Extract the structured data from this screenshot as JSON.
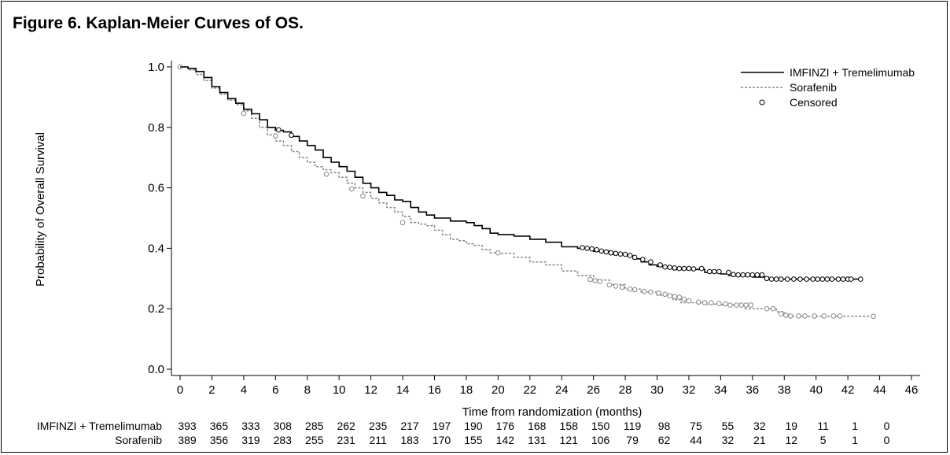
{
  "figure": {
    "title": "Figure 6. Kaplan-Meier Curves of OS."
  },
  "chart_data": {
    "type": "line",
    "subtype": "kaplan-meier",
    "title": "Figure 6. Kaplan-Meier Curves of OS.",
    "xlabel": "Time from randomization (months)",
    "ylabel": "Probability of Overall Survival",
    "xlim": [
      0,
      46
    ],
    "ylim": [
      0,
      1.0
    ],
    "xticks": [
      0,
      2,
      4,
      6,
      8,
      10,
      12,
      14,
      16,
      18,
      20,
      22,
      24,
      26,
      28,
      30,
      32,
      34,
      36,
      38,
      40,
      42,
      44,
      46
    ],
    "yticks": [
      0.0,
      0.2,
      0.4,
      0.6,
      0.8,
      1.0
    ],
    "ytick_labels": [
      "0.0",
      "0.2",
      "0.4",
      "0.6",
      "0.8",
      "1.0"
    ],
    "legend_position": "top-right",
    "legend": [
      {
        "label": "IMFINZI + Tremelimumab",
        "style": "solid",
        "color": "#000000"
      },
      {
        "label": "Sorafenib",
        "style": "dashed",
        "color": "#888888"
      },
      {
        "label": "Censored",
        "style": "marker"
      }
    ],
    "series": [
      {
        "name": "IMFINZI + Tremelimumab",
        "color": "#000000",
        "style": "solid",
        "points": [
          [
            0,
            1.0
          ],
          [
            0.5,
            0.995
          ],
          [
            1,
            0.985
          ],
          [
            1.5,
            0.965
          ],
          [
            2,
            0.935
          ],
          [
            2.5,
            0.915
          ],
          [
            3,
            0.895
          ],
          [
            3.5,
            0.88
          ],
          [
            4,
            0.86
          ],
          [
            4.5,
            0.845
          ],
          [
            5,
            0.825
          ],
          [
            5.5,
            0.8
          ],
          [
            6,
            0.79
          ],
          [
            6.5,
            0.785
          ],
          [
            7,
            0.77
          ],
          [
            7.5,
            0.755
          ],
          [
            8,
            0.74
          ],
          [
            8.5,
            0.725
          ],
          [
            9,
            0.7
          ],
          [
            9.5,
            0.685
          ],
          [
            10,
            0.67
          ],
          [
            10.5,
            0.655
          ],
          [
            11,
            0.635
          ],
          [
            11.5,
            0.615
          ],
          [
            12,
            0.6
          ],
          [
            12.5,
            0.585
          ],
          [
            13,
            0.575
          ],
          [
            13.5,
            0.56
          ],
          [
            14,
            0.555
          ],
          [
            14.5,
            0.535
          ],
          [
            15,
            0.52
          ],
          [
            15.5,
            0.51
          ],
          [
            16,
            0.5
          ],
          [
            17,
            0.49
          ],
          [
            18,
            0.485
          ],
          [
            18.5,
            0.475
          ],
          [
            19,
            0.465
          ],
          [
            19.5,
            0.45
          ],
          [
            20,
            0.445
          ],
          [
            21,
            0.44
          ],
          [
            22,
            0.43
          ],
          [
            23,
            0.42
          ],
          [
            24,
            0.405
          ],
          [
            25,
            0.4
          ],
          [
            26,
            0.39
          ],
          [
            27,
            0.38
          ],
          [
            28,
            0.375
          ],
          [
            28.5,
            0.365
          ],
          [
            29,
            0.355
          ],
          [
            29.5,
            0.345
          ],
          [
            30,
            0.34
          ],
          [
            30.5,
            0.335
          ],
          [
            31,
            0.33
          ],
          [
            32,
            0.33
          ],
          [
            33,
            0.32
          ],
          [
            34,
            0.315
          ],
          [
            34.5,
            0.31
          ],
          [
            35,
            0.308
          ],
          [
            36,
            0.305
          ],
          [
            37,
            0.298
          ],
          [
            38,
            0.298
          ],
          [
            40,
            0.298
          ],
          [
            42.9,
            0.298
          ]
        ],
        "censored": [
          [
            6.2,
            0.792
          ],
          [
            7,
            0.774
          ],
          [
            25.3,
            0.402
          ],
          [
            25.6,
            0.4
          ],
          [
            25.9,
            0.398
          ],
          [
            26.2,
            0.395
          ],
          [
            26.5,
            0.391
          ],
          [
            26.8,
            0.388
          ],
          [
            27.1,
            0.385
          ],
          [
            27.4,
            0.383
          ],
          [
            27.7,
            0.381
          ],
          [
            28.0,
            0.38
          ],
          [
            28.3,
            0.376
          ],
          [
            28.6,
            0.37
          ],
          [
            29.1,
            0.363
          ],
          [
            29.6,
            0.355
          ],
          [
            30.2,
            0.345
          ],
          [
            30.5,
            0.338
          ],
          [
            30.8,
            0.337
          ],
          [
            31.1,
            0.335
          ],
          [
            31.4,
            0.333
          ],
          [
            31.7,
            0.333
          ],
          [
            32.0,
            0.333
          ],
          [
            32.3,
            0.332
          ],
          [
            32.8,
            0.333
          ],
          [
            33.3,
            0.323
          ],
          [
            33.6,
            0.323
          ],
          [
            33.9,
            0.323
          ],
          [
            34.5,
            0.32
          ],
          [
            34.8,
            0.313
          ],
          [
            35.1,
            0.312
          ],
          [
            35.4,
            0.312
          ],
          [
            35.7,
            0.312
          ],
          [
            36.0,
            0.312
          ],
          [
            36.3,
            0.312
          ],
          [
            36.6,
            0.312
          ],
          [
            36.9,
            0.3
          ],
          [
            37.2,
            0.298
          ],
          [
            37.5,
            0.298
          ],
          [
            37.8,
            0.298
          ],
          [
            38.2,
            0.298
          ],
          [
            38.6,
            0.298
          ],
          [
            39.0,
            0.298
          ],
          [
            39.4,
            0.298
          ],
          [
            39.8,
            0.298
          ],
          [
            40.1,
            0.298
          ],
          [
            40.4,
            0.298
          ],
          [
            40.7,
            0.298
          ],
          [
            41.0,
            0.298
          ],
          [
            41.4,
            0.298
          ],
          [
            41.7,
            0.298
          ],
          [
            42.0,
            0.298
          ],
          [
            42.2,
            0.298
          ],
          [
            42.8,
            0.298
          ]
        ]
      },
      {
        "name": "Sorafenib",
        "color": "#888888",
        "style": "dashed",
        "points": [
          [
            0,
            1.0
          ],
          [
            0.5,
            0.99
          ],
          [
            1,
            0.975
          ],
          [
            1.5,
            0.955
          ],
          [
            2,
            0.93
          ],
          [
            2.5,
            0.91
          ],
          [
            3,
            0.89
          ],
          [
            3.5,
            0.875
          ],
          [
            4,
            0.855
          ],
          [
            4.5,
            0.83
          ],
          [
            5,
            0.8
          ],
          [
            5.5,
            0.775
          ],
          [
            6,
            0.755
          ],
          [
            6.5,
            0.74
          ],
          [
            7,
            0.72
          ],
          [
            7.5,
            0.7
          ],
          [
            8,
            0.685
          ],
          [
            8.5,
            0.67
          ],
          [
            9,
            0.66
          ],
          [
            9.5,
            0.65
          ],
          [
            10,
            0.635
          ],
          [
            10.5,
            0.615
          ],
          [
            11,
            0.6
          ],
          [
            11.5,
            0.585
          ],
          [
            12,
            0.565
          ],
          [
            12.5,
            0.55
          ],
          [
            13,
            0.535
          ],
          [
            13.5,
            0.52
          ],
          [
            14,
            0.505
          ],
          [
            14.5,
            0.485
          ],
          [
            15,
            0.48
          ],
          [
            15.5,
            0.475
          ],
          [
            16,
            0.46
          ],
          [
            16.5,
            0.445
          ],
          [
            17,
            0.43
          ],
          [
            17.5,
            0.425
          ],
          [
            18,
            0.415
          ],
          [
            18.5,
            0.41
          ],
          [
            19,
            0.395
          ],
          [
            19.5,
            0.385
          ],
          [
            20,
            0.383
          ],
          [
            21,
            0.37
          ],
          [
            22,
            0.355
          ],
          [
            23,
            0.345
          ],
          [
            24,
            0.325
          ],
          [
            25,
            0.31
          ],
          [
            26,
            0.295
          ],
          [
            27,
            0.28
          ],
          [
            28,
            0.265
          ],
          [
            29,
            0.255
          ],
          [
            30,
            0.245
          ],
          [
            31,
            0.23
          ],
          [
            31.5,
            0.22
          ],
          [
            32,
            0.22
          ],
          [
            33,
            0.215
          ],
          [
            34,
            0.213
          ],
          [
            35,
            0.21
          ],
          [
            35.5,
            0.2
          ],
          [
            36,
            0.2
          ],
          [
            37,
            0.2
          ],
          [
            37.5,
            0.19
          ],
          [
            38,
            0.175
          ],
          [
            40,
            0.175
          ],
          [
            43.6,
            0.175
          ]
        ],
        "censored": [
          [
            0,
            1.0
          ],
          [
            4,
            0.846
          ],
          [
            6,
            0.772
          ],
          [
            9.2,
            0.645
          ],
          [
            10.8,
            0.596
          ],
          [
            11.5,
            0.573
          ],
          [
            14,
            0.485
          ],
          [
            20,
            0.385
          ],
          [
            25.8,
            0.297
          ],
          [
            26.1,
            0.293
          ],
          [
            26.4,
            0.29
          ],
          [
            27,
            0.279
          ],
          [
            27.4,
            0.275
          ],
          [
            27.8,
            0.271
          ],
          [
            28.3,
            0.265
          ],
          [
            28.6,
            0.263
          ],
          [
            29.2,
            0.257
          ],
          [
            29.6,
            0.255
          ],
          [
            30.1,
            0.252
          ],
          [
            30.5,
            0.248
          ],
          [
            30.8,
            0.243
          ],
          [
            31.1,
            0.24
          ],
          [
            31.4,
            0.238
          ],
          [
            31.7,
            0.232
          ],
          [
            32.0,
            0.226
          ],
          [
            32.6,
            0.222
          ],
          [
            33.0,
            0.22
          ],
          [
            33.4,
            0.22
          ],
          [
            33.9,
            0.217
          ],
          [
            34.3,
            0.216
          ],
          [
            34.6,
            0.212
          ],
          [
            35.0,
            0.212
          ],
          [
            35.3,
            0.212
          ],
          [
            35.6,
            0.212
          ],
          [
            35.9,
            0.212
          ],
          [
            36.9,
            0.2
          ],
          [
            37.3,
            0.2
          ],
          [
            37.8,
            0.183
          ],
          [
            38.1,
            0.178
          ],
          [
            38.4,
            0.176
          ],
          [
            38.9,
            0.176
          ],
          [
            39.3,
            0.176
          ],
          [
            39.9,
            0.176
          ],
          [
            40.5,
            0.176
          ],
          [
            41.1,
            0.176
          ],
          [
            41.5,
            0.176
          ],
          [
            43.6,
            0.175
          ]
        ]
      }
    ],
    "risk_table": {
      "times": [
        0,
        2,
        4,
        6,
        8,
        10,
        12,
        14,
        16,
        18,
        20,
        22,
        24,
        26,
        28,
        30,
        32,
        34,
        36,
        38,
        40,
        42,
        44
      ],
      "rows": [
        {
          "label": "IMFINZI + Tremelimumab",
          "values": [
            393,
            365,
            333,
            308,
            285,
            262,
            235,
            217,
            197,
            190,
            176,
            168,
            158,
            150,
            119,
            98,
            75,
            55,
            32,
            19,
            11,
            1,
            0
          ]
        },
        {
          "label": "Sorafenib",
          "values": [
            389,
            356,
            319,
            283,
            255,
            231,
            211,
            183,
            170,
            155,
            142,
            131,
            121,
            106,
            79,
            62,
            44,
            32,
            21,
            12,
            5,
            1,
            0
          ]
        }
      ]
    }
  }
}
